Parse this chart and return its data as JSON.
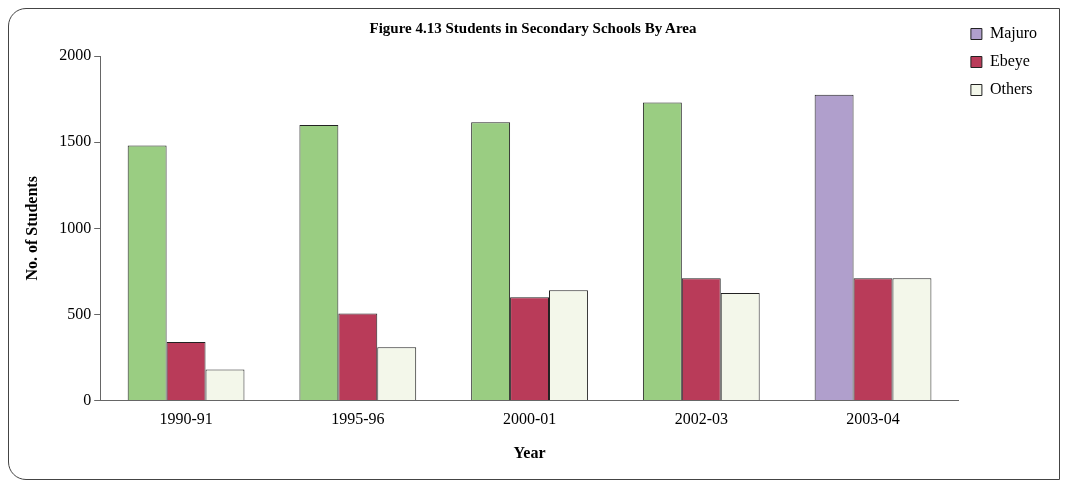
{
  "chart_data": {
    "type": "bar",
    "title": "Figure 4.13 Students in Secondary Schools By Area",
    "xlabel": "Year",
    "ylabel": "No. of Students",
    "categories": [
      "1990-91",
      "1995-96",
      "2000-01",
      "2002-03",
      "2003-04"
    ],
    "series": [
      {
        "name": "Majuro",
        "color": "#b09fcc",
        "colors": [
          "#9acd82",
          "#9acd82",
          "#9acd82",
          "#9acd82",
          "#b09fcc"
        ],
        "values": [
          1480,
          1600,
          1615,
          1730,
          1775
        ]
      },
      {
        "name": "Ebeye",
        "color": "#b93b59",
        "values": [
          340,
          505,
          600,
          710,
          710
        ]
      },
      {
        "name": "Others",
        "color": "#f3f7ea",
        "values": [
          180,
          310,
          640,
          625,
          710
        ]
      }
    ],
    "ylim": [
      0,
      2000
    ],
    "yticks": [
      0,
      500,
      1000,
      1500,
      2000
    ],
    "grid": false,
    "legend": "top right"
  }
}
